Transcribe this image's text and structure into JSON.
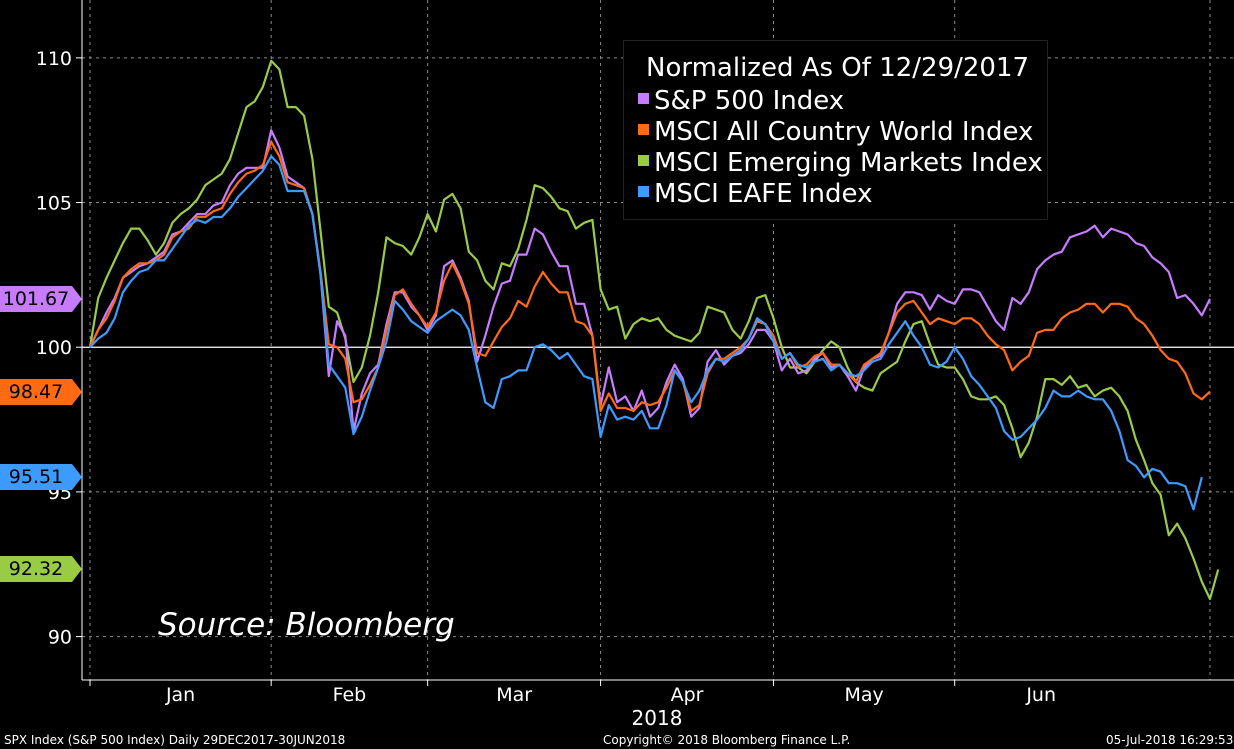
{
  "chart_data": {
    "type": "line",
    "title": "Normalized As Of 12/29/2017",
    "xlabel": "2018",
    "ylabel": "",
    "ylim": [
      88.5,
      112
    ],
    "yticks": [
      90,
      95,
      100,
      105,
      110
    ],
    "month_labels": [
      "Jan",
      "Feb",
      "Mar",
      "Apr",
      "May",
      "Jun"
    ],
    "series": [
      {
        "name": "S&P 500 Index",
        "color": "#c77cff",
        "last_label": "101.67",
        "values": [
          100.0,
          100.6,
          101.2,
          101.7,
          102.4,
          102.6,
          102.8,
          102.9,
          103.1,
          103.3,
          103.9,
          104.0,
          104.3,
          104.6,
          104.6,
          104.9,
          105.0,
          105.6,
          106.0,
          106.2,
          106.2,
          106.2,
          107.5,
          106.9,
          105.9,
          105.7,
          105.5,
          104.6,
          102.5,
          99.0,
          100.9,
          100.4,
          97.1,
          98.4,
          99.1,
          99.4,
          100.8,
          101.9,
          101.9,
          101.4,
          101.1,
          100.6,
          101.1,
          102.8,
          103.0,
          102.4,
          101.6,
          99.5,
          100.4,
          101.4,
          102.2,
          102.3,
          103.2,
          103.2,
          104.1,
          103.9,
          103.3,
          102.8,
          102.8,
          101.5,
          101.5,
          100.4,
          98.0,
          99.3,
          98.1,
          98.3,
          97.8,
          98.5,
          97.6,
          97.9,
          98.8,
          99.4,
          98.9,
          97.6,
          97.9,
          99.5,
          99.9,
          99.4,
          99.7,
          99.8,
          100.1,
          100.6,
          100.6,
          100.2,
          99.2,
          99.6,
          99.1,
          99.2,
          99.6,
          99.8,
          99.3,
          99.4,
          99.0,
          98.5,
          99.3,
          99.6,
          99.7,
          100.5,
          101.5,
          101.9,
          101.9,
          101.8,
          101.3,
          101.8,
          101.6,
          101.5,
          102.0,
          102.0,
          101.9,
          101.4,
          100.9,
          100.6,
          101.7,
          101.5,
          101.9,
          102.7,
          103.0,
          103.2,
          103.3,
          103.8,
          103.9,
          104.0,
          104.2,
          103.8,
          104.1,
          104.0,
          103.9,
          103.6,
          103.5,
          103.1,
          102.9,
          102.6,
          101.7,
          101.8,
          101.5,
          101.1,
          101.67
        ]
      },
      {
        "name": "MSCI All Country World Index",
        "color": "#ff6a13",
        "last_label": "98.47",
        "values": [
          100.0,
          100.6,
          101.0,
          101.6,
          102.4,
          102.7,
          102.9,
          102.9,
          103.0,
          103.2,
          103.8,
          104.0,
          104.1,
          104.5,
          104.5,
          104.7,
          104.8,
          105.3,
          105.7,
          106.0,
          106.1,
          106.3,
          107.1,
          106.6,
          105.7,
          105.6,
          105.5,
          104.6,
          102.6,
          100.1,
          100.0,
          99.6,
          98.1,
          98.2,
          98.7,
          99.3,
          100.6,
          101.8,
          102.0,
          101.5,
          101.1,
          100.7,
          101.2,
          102.3,
          102.9,
          102.3,
          101.5,
          99.8,
          99.7,
          100.2,
          100.7,
          101.0,
          101.6,
          101.4,
          102.1,
          102.6,
          102.2,
          101.9,
          101.9,
          100.9,
          100.8,
          100.4,
          97.8,
          98.4,
          97.9,
          97.9,
          97.8,
          98.1,
          98.0,
          98.1,
          98.6,
          99.2,
          98.8,
          97.8,
          98.0,
          99.1,
          99.6,
          99.6,
          99.8,
          100.0,
          100.3,
          100.9,
          100.8,
          100.4,
          99.6,
          99.8,
          99.3,
          99.4,
          99.7,
          99.8,
          99.4,
          99.4,
          99.1,
          98.8,
          99.4,
          99.6,
          99.8,
          100.5,
          101.2,
          101.5,
          101.6,
          101.2,
          100.8,
          101.0,
          100.9,
          100.8,
          101.0,
          101.0,
          100.8,
          100.4,
          100.1,
          99.9,
          99.2,
          99.5,
          99.7,
          100.5,
          100.6,
          100.6,
          101.0,
          101.2,
          101.3,
          101.5,
          101.5,
          101.2,
          101.5,
          101.5,
          101.4,
          101.0,
          100.8,
          100.4,
          99.9,
          99.6,
          99.5,
          99.1,
          98.4,
          98.2,
          98.47
        ]
      },
      {
        "name": "MSCI Emerging Markets Index",
        "color": "#99cc44",
        "last_label": "92.32",
        "values": [
          100.0,
          101.7,
          102.4,
          103.0,
          103.6,
          104.1,
          104.1,
          103.7,
          103.2,
          103.6,
          104.3,
          104.6,
          104.8,
          105.1,
          105.6,
          105.8,
          106.0,
          106.5,
          107.4,
          108.3,
          108.5,
          109.0,
          109.9,
          109.6,
          108.3,
          108.3,
          108.0,
          106.5,
          104.0,
          101.4,
          101.2,
          100.3,
          98.8,
          99.3,
          100.4,
          101.9,
          103.8,
          103.6,
          103.5,
          103.2,
          103.8,
          104.6,
          104.0,
          105.1,
          105.3,
          104.8,
          103.3,
          103.0,
          102.3,
          102.0,
          102.9,
          102.8,
          103.4,
          104.4,
          105.6,
          105.5,
          105.2,
          104.8,
          104.7,
          104.1,
          104.3,
          104.4,
          102.0,
          101.3,
          101.4,
          100.3,
          100.8,
          101.0,
          100.9,
          101.0,
          100.6,
          100.4,
          100.3,
          100.2,
          100.5,
          101.4,
          101.3,
          101.2,
          100.6,
          100.3,
          100.9,
          101.7,
          101.8,
          101.0,
          100.0,
          99.3,
          99.3,
          99.1,
          99.5,
          99.9,
          100.2,
          100.0,
          99.3,
          98.8,
          98.6,
          98.5,
          99.1,
          99.3,
          99.5,
          100.2,
          100.8,
          100.9,
          100.1,
          99.4,
          99.3,
          99.3,
          98.9,
          98.3,
          98.2,
          98.2,
          98.3,
          98.0,
          97.2,
          96.2,
          96.7,
          97.6,
          98.9,
          98.9,
          98.7,
          99.0,
          98.6,
          98.7,
          98.3,
          98.5,
          98.6,
          98.3,
          97.8,
          96.8,
          96.1,
          95.3,
          94.9,
          93.5,
          93.9,
          93.4,
          92.7,
          91.9,
          91.3,
          92.32
        ]
      },
      {
        "name": "MSCI EAFE Index",
        "color": "#3d9aff",
        "last_label": "95.51",
        "values": [
          100.0,
          100.3,
          100.5,
          101.0,
          101.9,
          102.3,
          102.6,
          102.7,
          103.0,
          103.0,
          103.4,
          103.8,
          104.2,
          104.4,
          104.3,
          104.5,
          104.5,
          104.8,
          105.2,
          105.5,
          105.8,
          106.1,
          106.6,
          106.3,
          105.4,
          105.4,
          105.4,
          104.6,
          102.5,
          99.4,
          99.0,
          98.6,
          97.0,
          97.6,
          98.5,
          99.3,
          100.2,
          101.6,
          101.3,
          100.9,
          100.7,
          100.5,
          100.9,
          101.1,
          101.3,
          101.1,
          100.6,
          99.3,
          98.1,
          97.9,
          98.9,
          99.0,
          99.2,
          99.2,
          100.0,
          100.1,
          99.9,
          99.6,
          99.8,
          99.4,
          99.0,
          98.9,
          96.9,
          98.0,
          97.5,
          97.6,
          97.5,
          97.8,
          97.2,
          97.2,
          98.0,
          99.2,
          98.8,
          98.1,
          98.5,
          99.2,
          99.6,
          99.5,
          99.7,
          99.9,
          100.3,
          101.0,
          100.8,
          100.2,
          99.6,
          99.8,
          99.4,
          99.3,
          99.5,
          99.6,
          99.2,
          99.4,
          99.1,
          99.0,
          99.2,
          99.5,
          99.6,
          100.1,
          100.5,
          100.9,
          100.4,
          100.0,
          99.4,
          99.3,
          99.5,
          100.0,
          99.6,
          99.0,
          98.7,
          98.3,
          97.9,
          97.1,
          96.8,
          96.9,
          97.2,
          97.5,
          97.9,
          98.5,
          98.3,
          98.3,
          98.5,
          98.3,
          98.2,
          98.2,
          97.8,
          97.1,
          96.1,
          95.9,
          95.5,
          95.8,
          95.7,
          95.3,
          95.3,
          95.2,
          94.4,
          95.51
        ]
      }
    ]
  },
  "source_text": "Source:  Bloomberg",
  "footer": {
    "left": "SPX Index (S&P 500 Index)  Daily 29DEC2017-30JUN2018",
    "center": "Copyright© 2018 Bloomberg Finance L.P.",
    "right": "05-Jul-2018 16:29:53"
  }
}
